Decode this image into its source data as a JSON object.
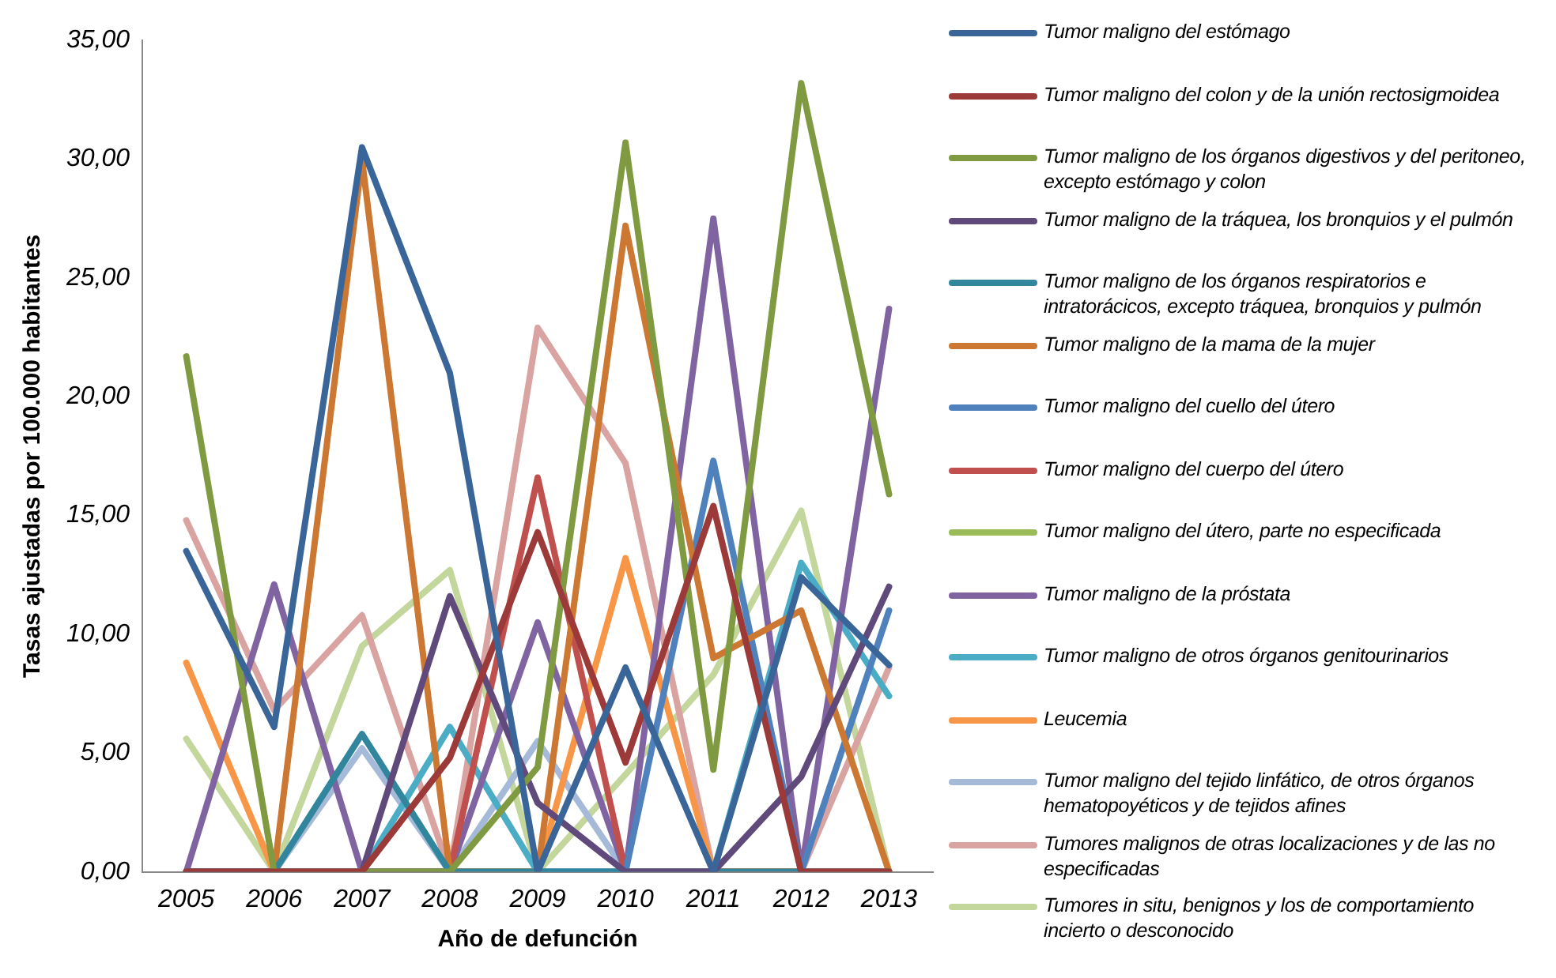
{
  "chart_data": {
    "type": "line",
    "xlabel": "Año de defunción",
    "ylabel": "Tasas ajustadas por 100.000 habitantes",
    "categories": [
      "2005",
      "2006",
      "2007",
      "2008",
      "2009",
      "2010",
      "2011",
      "2012",
      "2013"
    ],
    "ylim": [
      0,
      35
    ],
    "yticks": [
      {
        "value": 0,
        "label": "0,00"
      },
      {
        "value": 5,
        "label": "5,00"
      },
      {
        "value": 10,
        "label": "10,00"
      },
      {
        "value": 15,
        "label": "15,00"
      },
      {
        "value": 20,
        "label": "20,00"
      },
      {
        "value": 25,
        "label": "25,00"
      },
      {
        "value": 30,
        "label": "30,00"
      },
      {
        "value": 35,
        "label": "35,00"
      }
    ],
    "grid": false,
    "legend": "right",
    "marker": "none",
    "line_style": "solid",
    "series": [
      {
        "name": "Tumor maligno del estómago",
        "color": "#3a6599",
        "values": [
          13.5,
          6.1,
          30.5,
          21.0,
          0,
          8.6,
          0,
          12.4,
          8.7
        ]
      },
      {
        "name": "Tumor maligno del colon y de la unión rectosigmoidea",
        "color": "#9b3a38",
        "values": [
          0,
          0,
          0,
          4.8,
          14.3,
          4.6,
          15.4,
          0,
          0
        ]
      },
      {
        "name": "Tumor maligno de los órganos digestivos y del peritoneo, excepto estómago y colon",
        "color": "#7f9a41",
        "values": [
          21.7,
          0,
          0,
          0,
          4.4,
          30.7,
          4.3,
          33.2,
          15.9
        ]
      },
      {
        "name": "Tumor maligno de la tráquea, los bronquios y el pulmón",
        "color": "#604a7b",
        "values": [
          0,
          0,
          0,
          11.6,
          2.9,
          0,
          0,
          4.0,
          12.0
        ]
      },
      {
        "name": "Tumor maligno de los órganos respiratorios e intratorácicos, excepto tráquea, bronquios y pulmón",
        "color": "#31859c",
        "values": [
          0,
          0,
          5.8,
          0,
          0,
          0,
          0,
          0,
          0
        ]
      },
      {
        "name": "Tumor maligno de la mama de la mujer",
        "color": "#cc7832",
        "values": [
          0,
          0,
          30.0,
          0,
          0,
          27.2,
          9.0,
          11.0,
          0
        ]
      },
      {
        "name": "Tumor maligno del cuello del útero",
        "color": "#4f81bd",
        "values": [
          0,
          0,
          0,
          0,
          0,
          0,
          17.3,
          0,
          11.0
        ]
      },
      {
        "name": "Tumor maligno del cuerpo del útero",
        "color": "#c0504d",
        "values": [
          0,
          0,
          0,
          0,
          16.6,
          0,
          0,
          0,
          0
        ]
      },
      {
        "name": "Tumor maligno del útero, parte no especificada",
        "color": "#9bbb59",
        "values": [
          null,
          null,
          null,
          null,
          null,
          null,
          null,
          null,
          null
        ]
      },
      {
        "name": "Tumor maligno de la próstata",
        "color": "#8064a2",
        "values": [
          0,
          12.1,
          0,
          0,
          10.5,
          0,
          27.5,
          0,
          23.7
        ]
      },
      {
        "name": "Tumor maligno de otros órganos genitourinarios",
        "color": "#4bacc6",
        "values": [
          0,
          0,
          0,
          6.1,
          0,
          0,
          0,
          13.0,
          7.4
        ]
      },
      {
        "name": "Leucemia",
        "color": "#f79646",
        "values": [
          8.8,
          0,
          0,
          0,
          0,
          13.2,
          0,
          0,
          0
        ]
      },
      {
        "name": "Tumor maligno del tejido linfático, de otros órganos hematopoyéticos y de tejidos afines",
        "color": "#a5b9d8",
        "values": [
          0,
          0,
          5.2,
          0,
          5.5,
          0,
          0,
          0,
          0
        ]
      },
      {
        "name": "Tumores malignos de otras localizaciones y de las no especificadas",
        "color": "#d9a3a1",
        "values": [
          14.8,
          6.8,
          10.8,
          0,
          22.9,
          17.2,
          0,
          0,
          8.6
        ]
      },
      {
        "name": "Tumores in situ, benignos y los de comportamiento incierto o desconocido",
        "color": "#c3d69b",
        "values": [
          5.6,
          0,
          9.5,
          12.7,
          0,
          4.1,
          8.3,
          15.2,
          0
        ]
      }
    ]
  }
}
